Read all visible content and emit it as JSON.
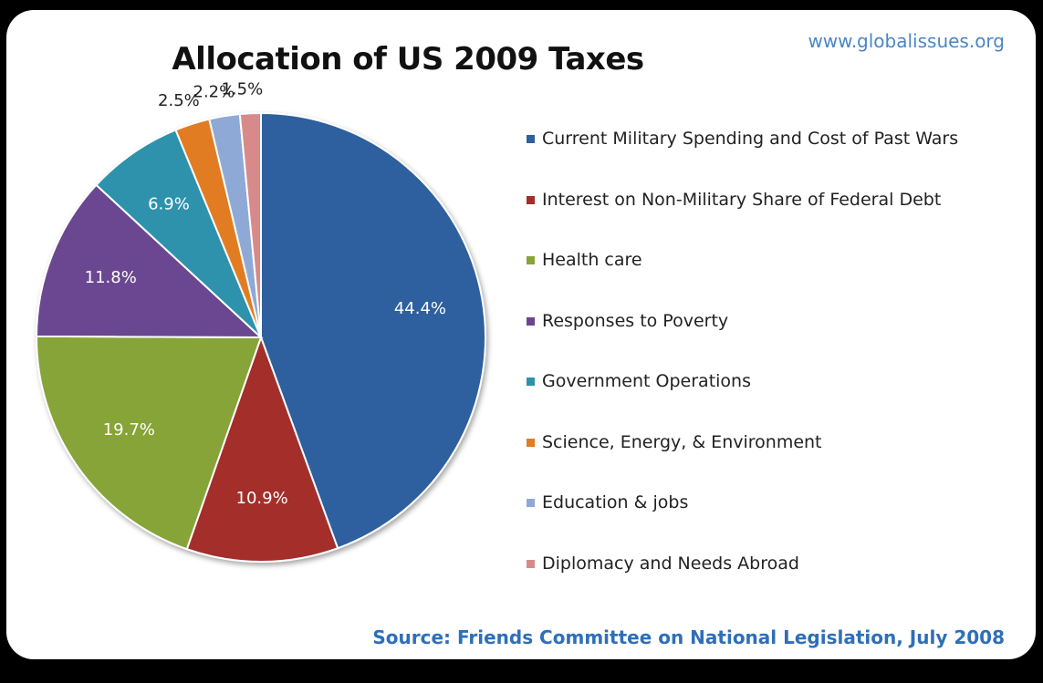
{
  "website": "www.globalissues.org",
  "source": "Source: Friends Committee on National Legislation, July 2008",
  "chart_data": {
    "type": "pie",
    "title": "Allocation of US 2009 Taxes",
    "legend_position": "right",
    "slices": [
      {
        "name": "Current Military Spending and Cost of Past Wars",
        "value": 44.4,
        "label": "44.4%",
        "color": "#2f5f9e"
      },
      {
        "name": "Interest on Non-Military Share of Federal Debt",
        "value": 10.9,
        "label": "10.9%",
        "color": "#a32d2b"
      },
      {
        "name": "Health care",
        "value": 19.7,
        "label": "19.7%",
        "color": "#87a438"
      },
      {
        "name": "Responses to Poverty",
        "value": 11.8,
        "label": "11.8%",
        "color": "#6a4690"
      },
      {
        "name": "Government Operations",
        "value": 6.9,
        "label": "6.9%",
        "color": "#2f92ad"
      },
      {
        "name": "Science, Energy, & Environment",
        "value": 2.5,
        "label": "2.5%",
        "color": "#e27c21"
      },
      {
        "name": "Education & jobs",
        "value": 2.2,
        "label": "2.2%",
        "color": "#8fa9d6"
      },
      {
        "name": "Diplomacy and Needs Abroad",
        "value": 1.5,
        "label": "1.5%",
        "color": "#d88a8a"
      }
    ]
  }
}
